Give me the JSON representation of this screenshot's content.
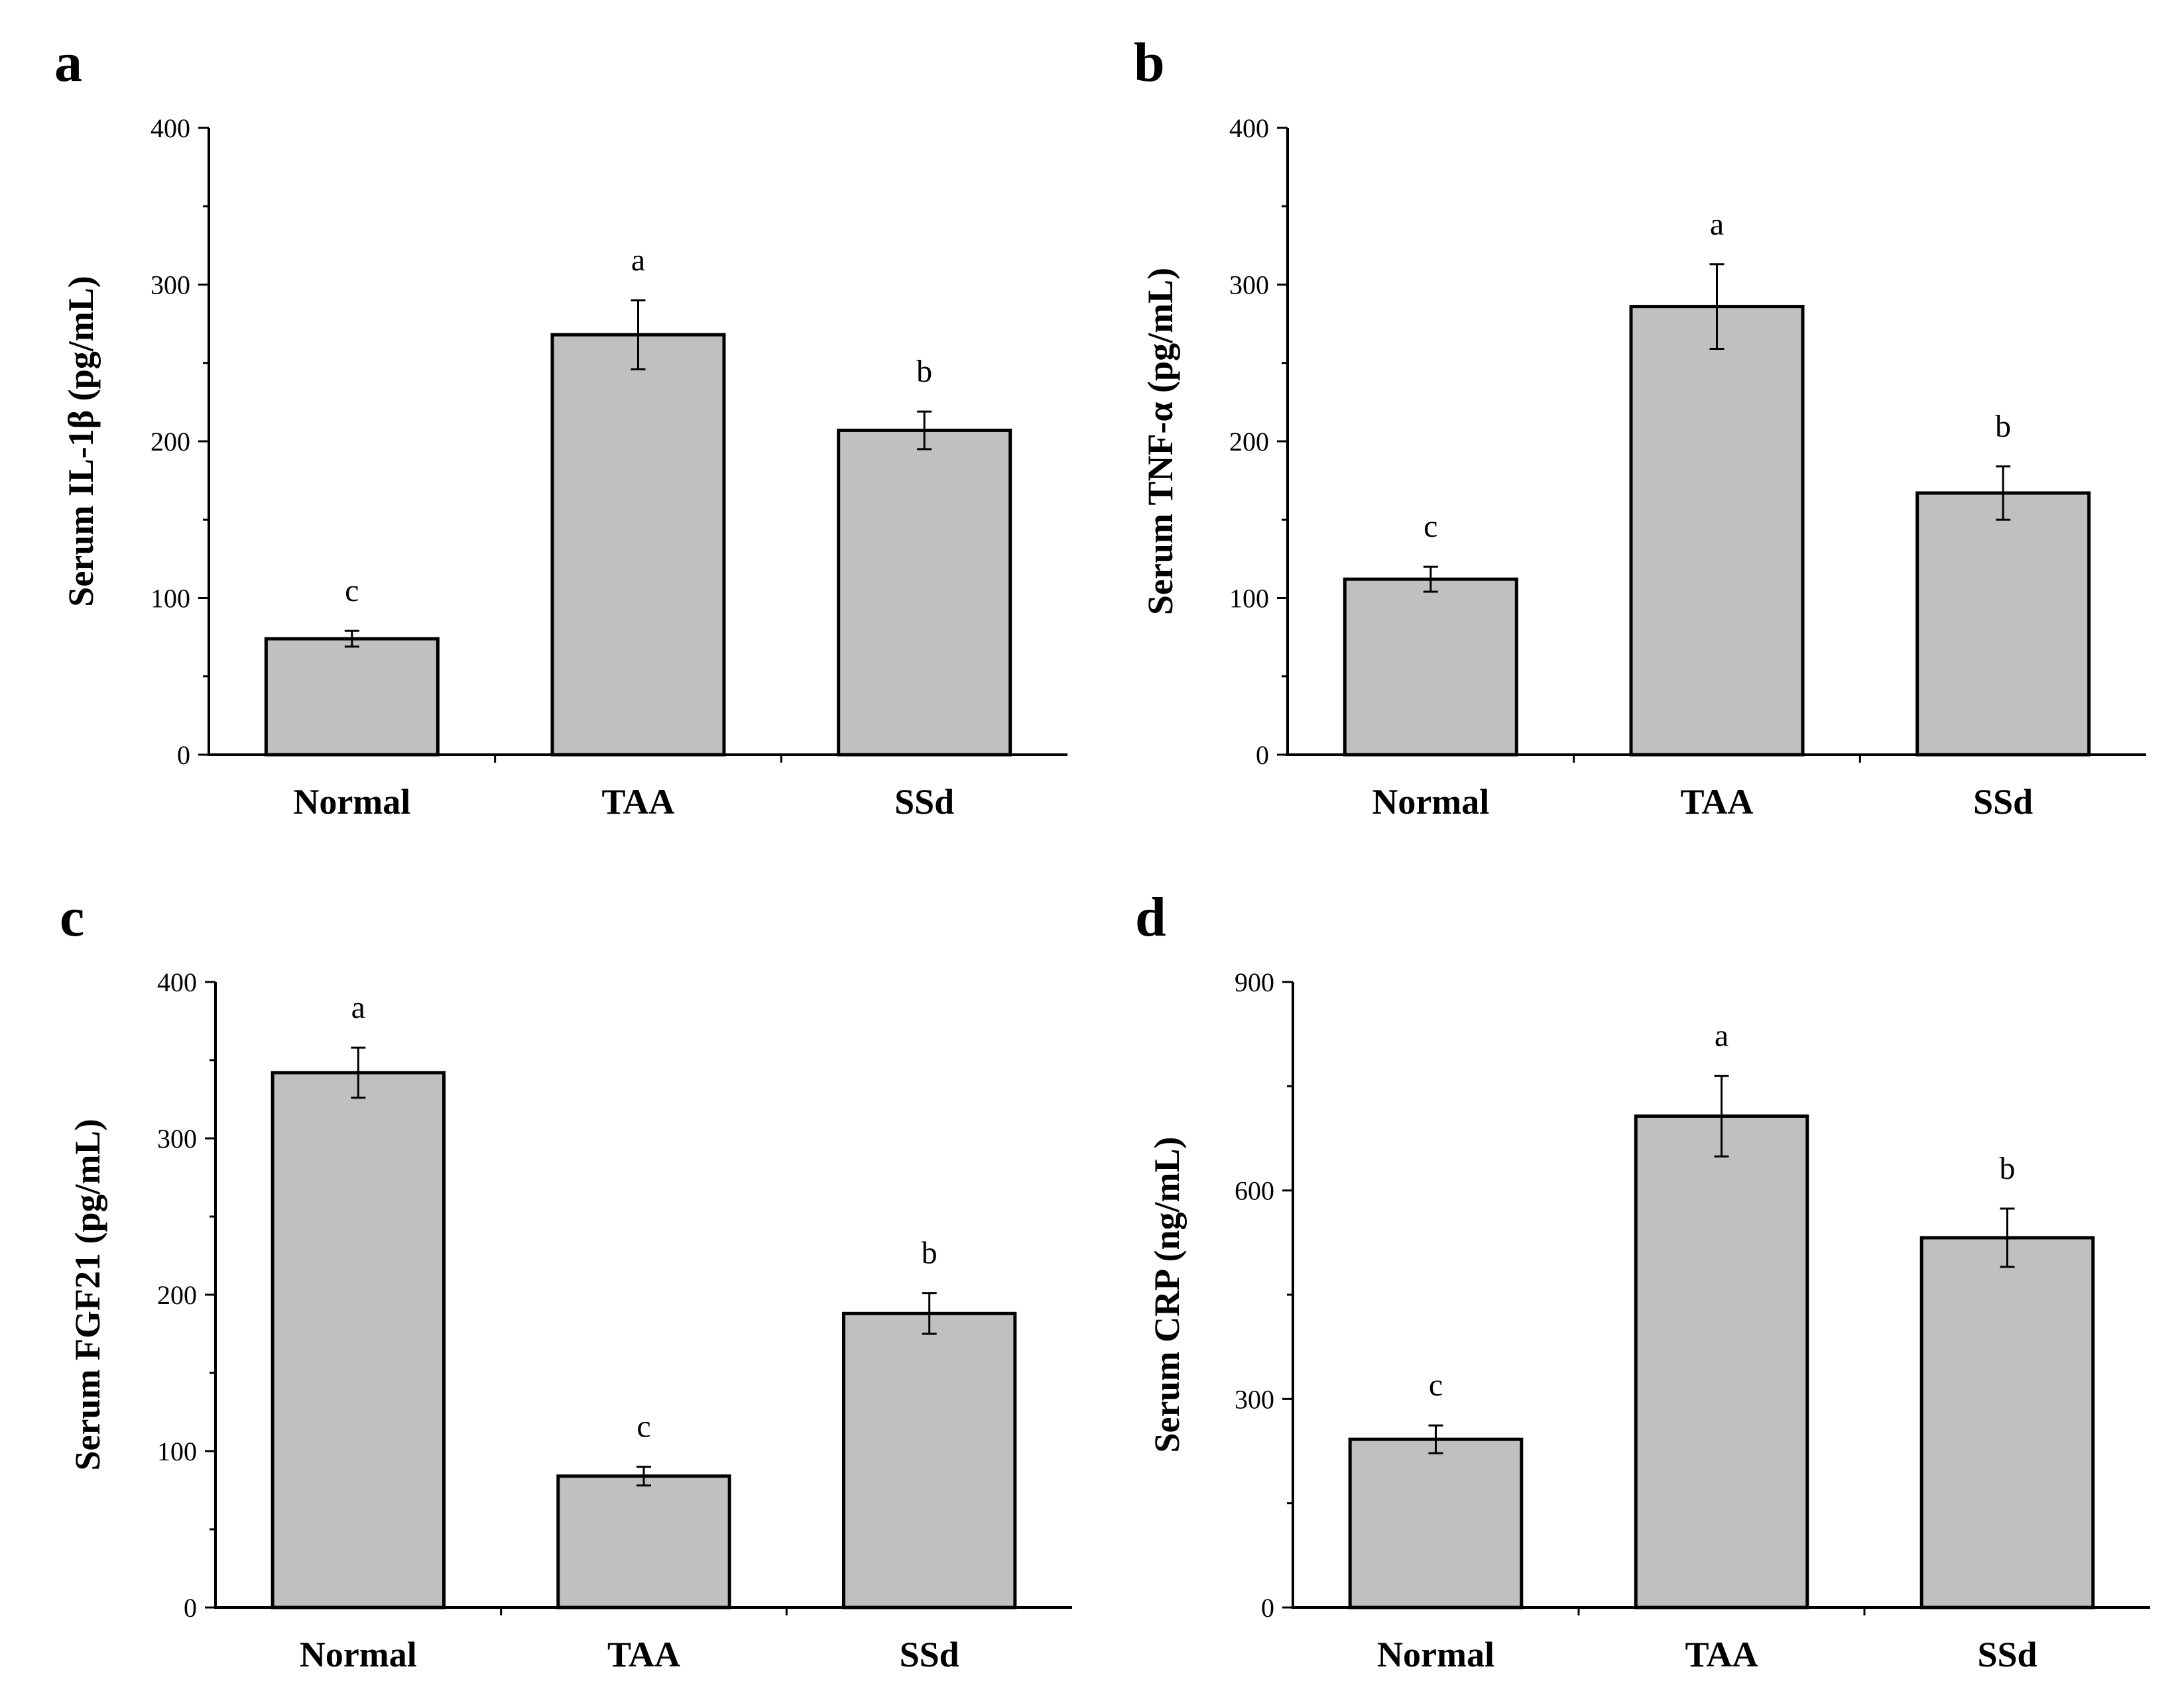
{
  "chart_data": [
    {
      "type": "bar",
      "panel": "a",
      "categories": [
        "Normal",
        "TAA",
        "SSd"
      ],
      "values": [
        74,
        268,
        207
      ],
      "errors": [
        5,
        22,
        12
      ],
      "significance": [
        "c",
        "a",
        "b"
      ],
      "ylabel": "Serum IL-1β (pg/mL)",
      "ylim": [
        0,
        400
      ],
      "yticks": [
        "0",
        "100",
        "200",
        "300",
        "400"
      ],
      "bar_color": "#c0c0c0"
    },
    {
      "type": "bar",
      "panel": "b",
      "categories": [
        "Normal",
        "TAA",
        "SSd"
      ],
      "values": [
        112,
        286,
        167
      ],
      "errors": [
        8,
        27,
        17
      ],
      "significance": [
        "c",
        "a",
        "b"
      ],
      "ylabel": "Serum TNF-α (pg/mL)",
      "ylim": [
        0,
        400
      ],
      "yticks": [
        "0",
        "100",
        "200",
        "300",
        "400"
      ],
      "bar_color": "#c0c0c0"
    },
    {
      "type": "bar",
      "panel": "c",
      "categories": [
        "Normal",
        "TAA",
        "SSd"
      ],
      "values": [
        342,
        84,
        188
      ],
      "errors": [
        16,
        6,
        13
      ],
      "significance": [
        "a",
        "c",
        "b"
      ],
      "ylabel": "Serum FGF21 (pg/mL)",
      "ylim": [
        0,
        400
      ],
      "yticks": [
        "0",
        "100",
        "200",
        "300",
        "400"
      ],
      "bar_color": "#c0c0c0"
    },
    {
      "type": "bar",
      "panel": "d",
      "categories": [
        "Normal",
        "TAA",
        "SSd"
      ],
      "values": [
        242,
        707,
        532
      ],
      "errors": [
        20,
        58,
        42
      ],
      "significance": [
        "c",
        "a",
        "b"
      ],
      "ylabel": "Serum CRP (ng/mL)",
      "ylim": [
        0,
        900
      ],
      "yticks": [
        "0",
        "300",
        "600",
        "900"
      ],
      "bar_color": "#c0c0c0"
    }
  ]
}
